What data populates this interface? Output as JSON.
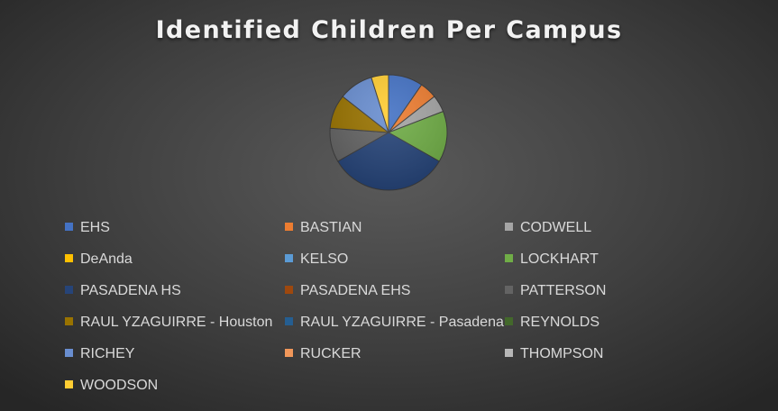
{
  "chart_data": {
    "type": "pie",
    "title": "Identified Children Per Campus",
    "legend_position": "bottom",
    "categories": [
      "EHS",
      "BASTIAN",
      "CODWELL",
      "DeAnda",
      "KELSO",
      "LOCKHART",
      "PASADENA HS",
      "PASADENA EHS",
      "PATTERSON",
      "RAUL YZAGUIRRE - Houston",
      "RAUL YZAGUIRRE - Pasadena",
      "REYNOLDS",
      "RICHEY",
      "RUCKER",
      "THOMPSON",
      "WOODSON"
    ],
    "values": [
      10,
      5,
      5,
      0,
      0,
      15,
      35,
      0,
      10,
      10,
      0,
      0,
      10,
      0,
      0,
      5
    ],
    "colors": [
      "#4472c4",
      "#ed7d31",
      "#a5a5a5",
      "#ffc000",
      "#5b9bd5",
      "#70ad47",
      "#264478",
      "#9e480e",
      "#636363",
      "#997300",
      "#255e91",
      "#43682b",
      "#698ed0",
      "#f1975a",
      "#b7b7b7",
      "#ffcd33"
    ]
  }
}
